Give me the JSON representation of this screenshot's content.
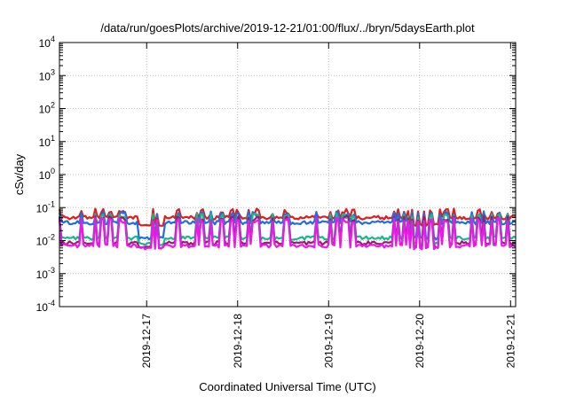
{
  "chart_data": {
    "type": "line",
    "title": "/data/run/goesPlots/archive/2019-12-21/01:00/flux/../bryn/5daysEarth.plot",
    "xlabel": "Coordinated Universal Time (UTC)",
    "ylabel": "cSv/day",
    "yscale": "log",
    "ylim": [
      0.0001,
      10000
    ],
    "xlim": [
      "2019-12-16 01:00",
      "2019-12-21 01:20"
    ],
    "x_ticks": [
      "2019-12-17",
      "2019-12-18",
      "2019-12-19",
      "2019-12-20",
      "2019-12-21"
    ],
    "y_ticks": [
      {
        "base": "10",
        "exp": "-4",
        "value": 0.0001
      },
      {
        "base": "10",
        "exp": "-3",
        "value": 0.001
      },
      {
        "base": "10",
        "exp": "-2",
        "value": 0.01
      },
      {
        "base": "10",
        "exp": "-1",
        "value": 0.1
      },
      {
        "base": "10",
        "exp": "0",
        "value": 1
      },
      {
        "base": "10",
        "exp": "1",
        "value": 10
      },
      {
        "base": "10",
        "exp": "2",
        "value": 100
      },
      {
        "base": "10",
        "exp": "3",
        "value": 1000
      },
      {
        "base": "10",
        "exp": "4",
        "value": 10000
      }
    ],
    "grid": true,
    "legend": "none",
    "series": [
      {
        "color": "#e41a1c",
        "baseline": 0.05,
        "spike": 0.085,
        "dip": 0.03
      },
      {
        "color": "#1e6fe0",
        "baseline": 0.035,
        "spike": 0.07,
        "dip": 0.012
      },
      {
        "color": "#17b890",
        "baseline": 0.012,
        "spike": 0.06,
        "dip": 0.008
      },
      {
        "color": "#9b1b6a",
        "baseline": 0.0085,
        "spike": 0.05,
        "dip": 0.0065
      },
      {
        "color": "#e81be8",
        "baseline": 0.007,
        "spike": 0.045,
        "dip": 0.006
      }
    ]
  }
}
